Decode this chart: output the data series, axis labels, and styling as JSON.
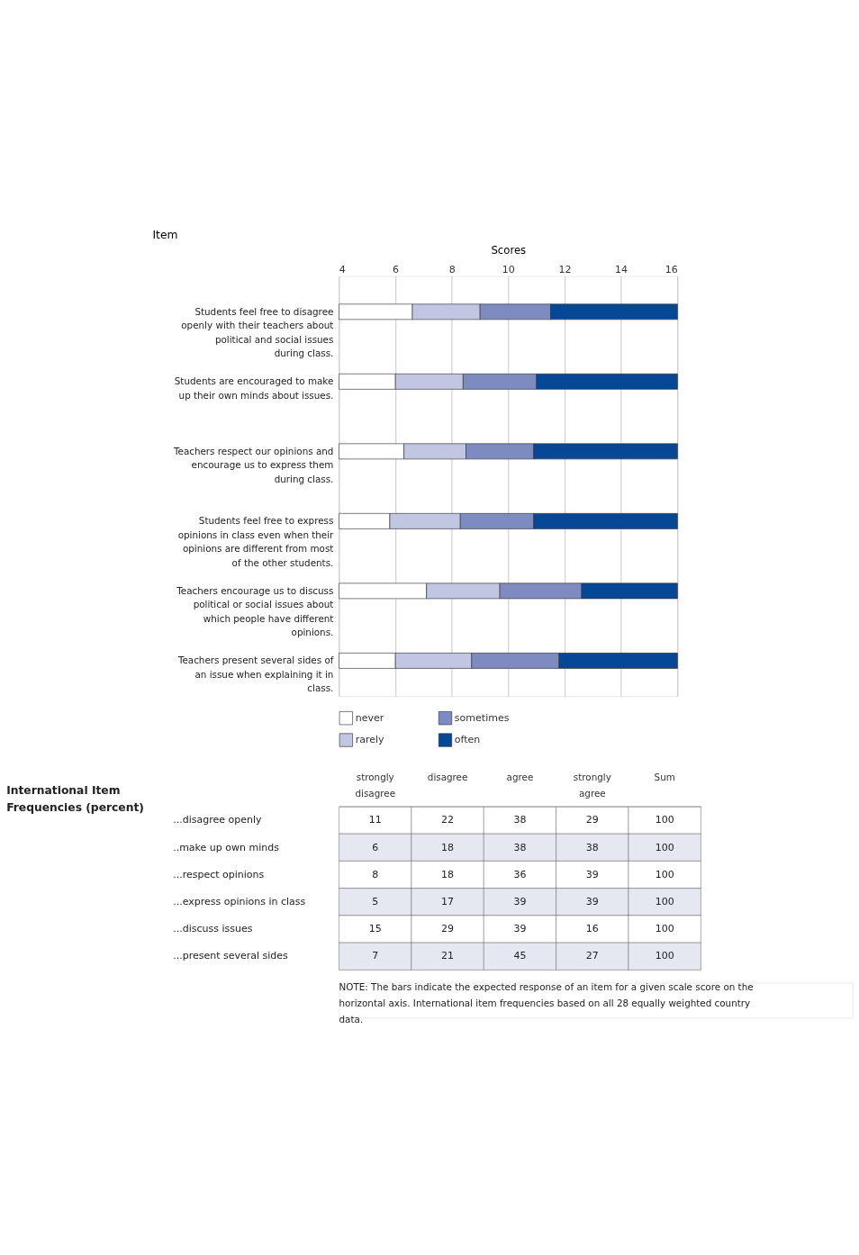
{
  "chart_data": [
    {
      "type": "bar",
      "orientation": "horizontal",
      "xlabel": "Scores",
      "ylabel": "Item",
      "categories": [
        "Students feel free to disagree openly with their teachers about political and social issues during class.",
        "Students are encouraged to make up their own minds about issues.",
        "Teachers respect our opinions and encourage us to express them during class.",
        "Students feel free to express opinions in class even when their opinions are different from most of the other students.",
        "Teachers encourage us to discuss political or social issues about which people have different opinions.",
        "Teachers present several sides of an issue when explaining it in class."
      ],
      "series": [
        {
          "name": "never",
          "color": "#ffffff",
          "base": [
            4,
            4,
            4,
            4,
            4,
            4
          ],
          "values": [
            2.6,
            2.0,
            2.3,
            1.8,
            3.1,
            2.0
          ]
        },
        {
          "name": "rarely",
          "color": "#c1c6e2",
          "base": [
            6.6,
            6.0,
            6.3,
            5.8,
            7.1,
            6.0
          ],
          "values": [
            2.4,
            2.4,
            2.2,
            2.5,
            2.6,
            2.7
          ]
        },
        {
          "name": "sometimes",
          "color": "#7e8bc0",
          "base": [
            9.0,
            8.4,
            8.5,
            8.3,
            9.7,
            8.7
          ],
          "values": [
            2.5,
            2.6,
            2.4,
            2.6,
            2.9,
            3.1
          ]
        },
        {
          "name": "often",
          "color": "#074896",
          "base": [
            11.5,
            11.0,
            10.9,
            10.9,
            12.6,
            11.8
          ],
          "values": [
            4.5,
            5.0,
            5.1,
            5.1,
            3.4,
            4.2
          ]
        }
      ],
      "xlim": [
        4,
        16
      ],
      "xticks": [
        4,
        6,
        8,
        10,
        12,
        14,
        16
      ],
      "grid": "x",
      "legend": "bottom"
    },
    {
      "type": "heatmap",
      "title": "International Item Frequencies (percent)",
      "categories": [
        "strongly disagree",
        "disagree",
        "agree",
        "strongly agree",
        "Sum"
      ],
      "y_categories": [
        "...disagree openly",
        "..make up own minds",
        "...respect opinions",
        "...express opinions in class",
        "...discuss issues",
        "...present several sides"
      ],
      "cells": [
        [
          11,
          22,
          38,
          29,
          100
        ],
        [
          6,
          18,
          38,
          38,
          100
        ],
        [
          8,
          18,
          36,
          39,
          100
        ],
        [
          5,
          17,
          39,
          39,
          100
        ],
        [
          15,
          29,
          39,
          16,
          100
        ],
        [
          7,
          21,
          45,
          27,
          100
        ]
      ],
      "data_labels": true,
      "annotations": [
        "NOTE: The bars indicate the expected response of an item for a given scale score on the horizontal axis. International item frequencies based on all 28 equally weighted country data."
      ]
    }
  ]
}
